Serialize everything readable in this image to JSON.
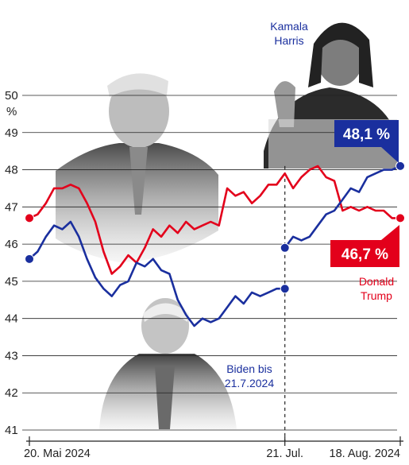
{
  "chart_data": {
    "type": "line",
    "ylabel": "%",
    "ylim": [
      41,
      50
    ],
    "y_ticks": [
      "50",
      "49",
      "48",
      "47",
      "46",
      "45",
      "44",
      "43",
      "42",
      "41"
    ],
    "x_tick_labels": [
      "20. Mai 2024",
      "21. Jul.",
      "18. Aug. 2024"
    ],
    "grid": true,
    "series": [
      {
        "name": "Donald Trump",
        "color": "#e3001b",
        "label_lines": [
          "Donald",
          "Trump"
        ],
        "end_label": "46,7 %",
        "x_days": [
          0,
          2,
          4,
          6,
          8,
          10,
          12,
          14,
          16,
          18,
          20,
          22,
          24,
          26,
          28,
          30,
          32,
          34,
          36,
          38,
          40,
          42,
          44,
          46,
          48,
          50,
          52,
          54,
          56,
          58,
          60,
          62,
          64,
          66,
          68,
          70,
          72,
          74,
          76,
          78,
          80,
          82,
          84,
          86,
          88,
          90
        ],
        "values": [
          46.7,
          46.8,
          47.1,
          47.5,
          47.5,
          47.6,
          47.5,
          47.1,
          46.6,
          45.8,
          45.2,
          45.4,
          45.7,
          45.5,
          45.9,
          46.4,
          46.2,
          46.5,
          46.3,
          46.6,
          46.4,
          46.5,
          46.6,
          46.5,
          47.5,
          47.3,
          47.4,
          47.1,
          47.3,
          47.6,
          47.6,
          47.9,
          47.5,
          47.8,
          48.0,
          48.1,
          47.8,
          47.7,
          46.9,
          47.0,
          46.9,
          47.0,
          46.9,
          46.9,
          46.7,
          46.7
        ]
      },
      {
        "name": "Biden bis 21.7.2024",
        "color": "#1a2f9e",
        "label_lines": [
          "Biden bis",
          "21.7.2024"
        ],
        "x_days": [
          0,
          2,
          4,
          6,
          8,
          10,
          12,
          14,
          16,
          18,
          20,
          22,
          24,
          26,
          28,
          30,
          32,
          34,
          36,
          38,
          40,
          42,
          44,
          46,
          48,
          50,
          52,
          54,
          56,
          58,
          60,
          62
        ],
        "values": [
          45.6,
          45.8,
          46.2,
          46.5,
          46.4,
          46.6,
          46.2,
          45.6,
          45.1,
          44.8,
          44.6,
          44.9,
          45.0,
          45.5,
          45.4,
          45.6,
          45.3,
          45.2,
          44.5,
          44.1,
          43.8,
          44.0,
          43.9,
          44.0,
          44.3,
          44.6,
          44.4,
          44.7,
          44.6,
          44.7,
          44.8,
          44.8
        ]
      },
      {
        "name": "Kamala Harris",
        "color": "#1a2f9e",
        "label_lines": [
          "Kamala",
          "Harris"
        ],
        "end_label": "48,1 %",
        "x_days": [
          62,
          64,
          66,
          68,
          70,
          72,
          74,
          76,
          78,
          80,
          82,
          84,
          86,
          88,
          90
        ],
        "values": [
          45.9,
          46.2,
          46.1,
          46.2,
          46.5,
          46.8,
          46.9,
          47.2,
          47.5,
          47.4,
          47.8,
          47.9,
          48.0,
          48.0,
          48.1
        ]
      }
    ]
  }
}
